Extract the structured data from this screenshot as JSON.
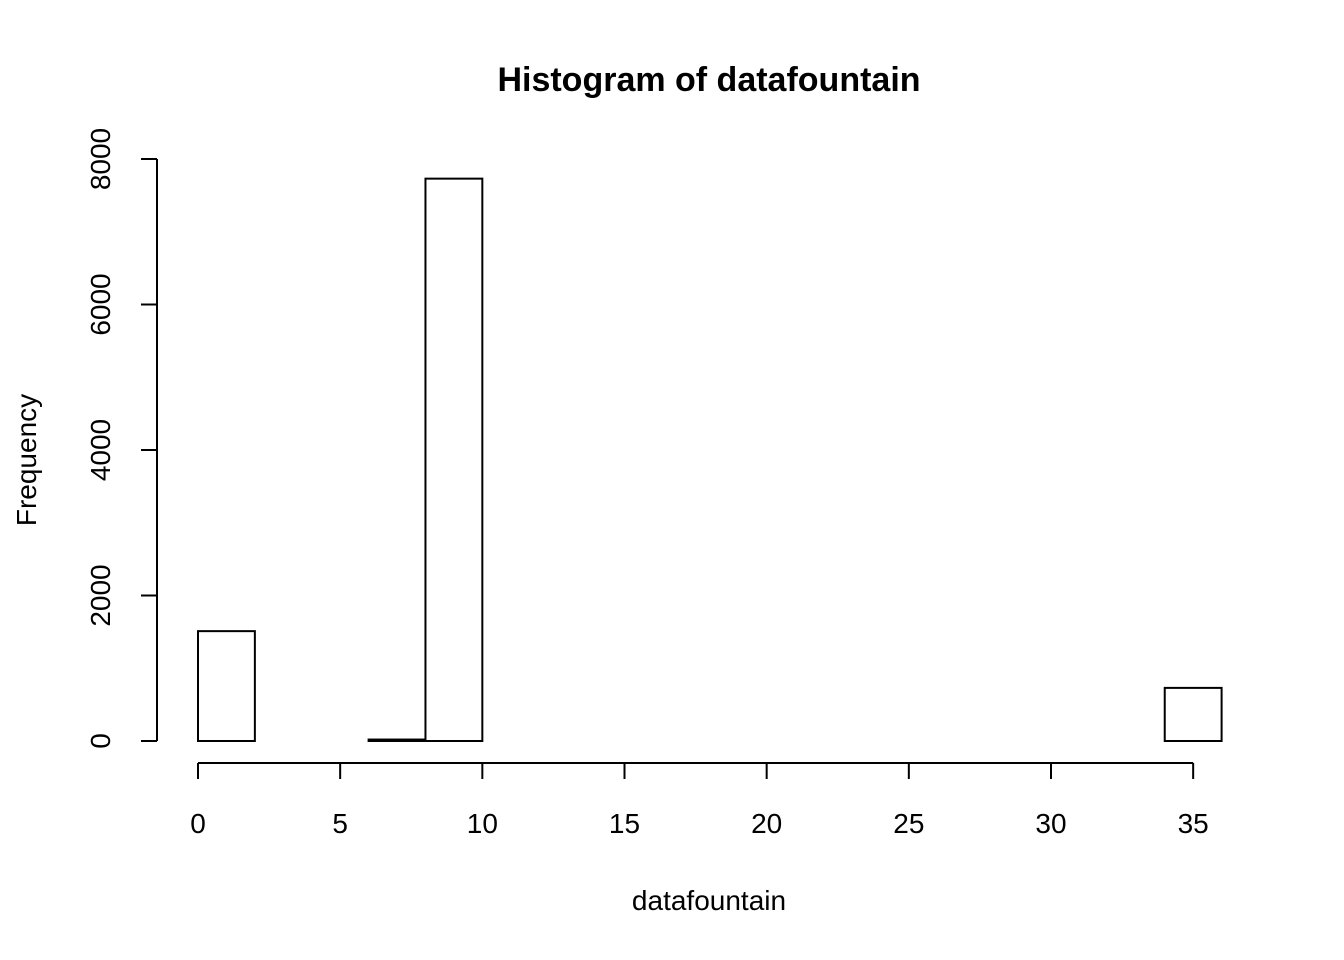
{
  "chart_data": {
    "type": "bar",
    "title": "Histogram of datafountain",
    "xlabel": "datafountain",
    "ylabel": "Frequency",
    "xlim": [
      0,
      36
    ],
    "ylim": [
      0,
      8000
    ],
    "x_ticks": [
      0,
      5,
      10,
      15,
      20,
      25,
      30,
      35
    ],
    "y_ticks": [
      0,
      2000,
      4000,
      6000,
      8000
    ],
    "bins": [
      {
        "start": 0,
        "end": 2,
        "count": 1510
      },
      {
        "start": 2,
        "end": 4,
        "count": 0
      },
      {
        "start": 4,
        "end": 6,
        "count": 0
      },
      {
        "start": 6,
        "end": 8,
        "count": 20
      },
      {
        "start": 8,
        "end": 10,
        "count": 7730
      },
      {
        "start": 10,
        "end": 12,
        "count": 0
      },
      {
        "start": 12,
        "end": 14,
        "count": 0
      },
      {
        "start": 14,
        "end": 16,
        "count": 0
      },
      {
        "start": 16,
        "end": 18,
        "count": 0
      },
      {
        "start": 18,
        "end": 20,
        "count": 0
      },
      {
        "start": 20,
        "end": 22,
        "count": 0
      },
      {
        "start": 22,
        "end": 24,
        "count": 0
      },
      {
        "start": 24,
        "end": 26,
        "count": 0
      },
      {
        "start": 26,
        "end": 28,
        "count": 0
      },
      {
        "start": 28,
        "end": 30,
        "count": 0
      },
      {
        "start": 30,
        "end": 32,
        "count": 0
      },
      {
        "start": 32,
        "end": 34,
        "count": 0
      },
      {
        "start": 34,
        "end": 36,
        "count": 730
      }
    ],
    "grid": false,
    "bar_fill": "#ffffff",
    "bar_stroke": "#000000"
  }
}
